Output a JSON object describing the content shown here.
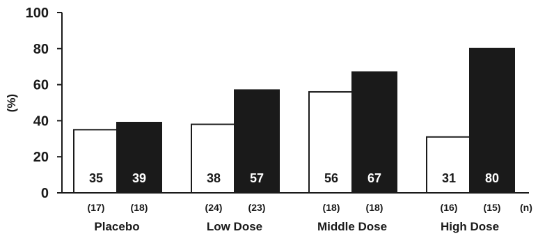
{
  "chart_data": {
    "type": "bar",
    "title": "",
    "xlabel": "",
    "ylabel": "(%)",
    "ylim": [
      0,
      100
    ],
    "yticks": [
      "0",
      "20",
      "40",
      "60",
      "80",
      "100"
    ],
    "categories": [
      "Placebo",
      "Low Dose",
      "Middle Dose",
      "High Dose"
    ],
    "series": [
      {
        "fill": "#ffffff",
        "label_color": "#1a1a1a",
        "values": [
          35,
          38,
          56,
          31
        ],
        "value_labels": [
          "35",
          "38",
          "56",
          "31"
        ],
        "n_labels": [
          "(17)",
          "(24)",
          "(18)",
          "(16)"
        ]
      },
      {
        "fill": "#1a1a1a",
        "label_color": "#ffffff",
        "values": [
          39,
          57,
          67,
          80
        ],
        "value_labels": [
          "39",
          "57",
          "67",
          "80"
        ],
        "n_labels": [
          "(18)",
          "(23)",
          "(18)",
          "(15)"
        ]
      }
    ],
    "n_unit": "(n)",
    "grid": false,
    "legend": "none"
  }
}
